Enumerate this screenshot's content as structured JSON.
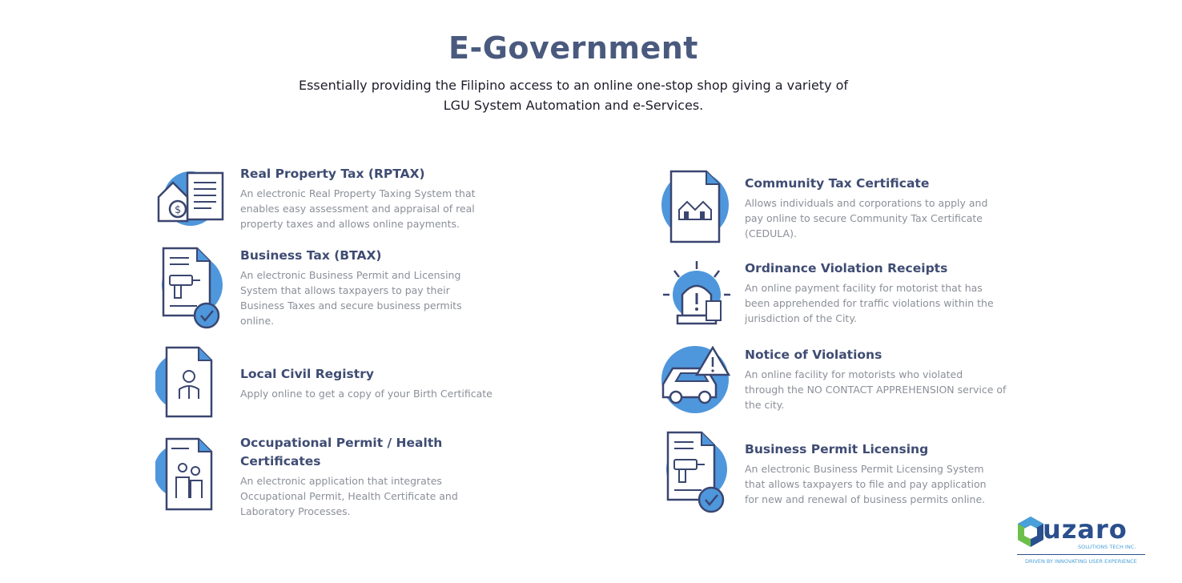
{
  "header": {
    "title": "E-Government",
    "subtitle_line1": "Essentially providing the Filipino access to an online one-stop shop giving a variety of",
    "subtitle_line2": "LGU System Automation and e-Services."
  },
  "colors": {
    "title": "#4a5a7e",
    "accent_blue": "#4f97dc",
    "outline": "#3a4670",
    "body_text": "#8b8f98"
  },
  "services_left": [
    {
      "icon": "house-money-document-icon",
      "title": "Real Property Tax (RPTAX)",
      "lines": [
        "An electronic Real Property Taxing System that",
        "enables easy assessment and appraisal of real",
        "property taxes and allows online payments."
      ]
    },
    {
      "icon": "drill-document-check-icon",
      "title": "Business Tax (BTAX)",
      "lines": [
        "An electronic Business Permit and Licensing",
        "System that allows taxpayers to pay their",
        "Business Taxes and secure business permits",
        "online."
      ]
    },
    {
      "icon": "person-document-icon",
      "title": "Local Civil Registry",
      "lines": [
        "Apply online to get a copy of your Birth Certificate"
      ]
    },
    {
      "icon": "workers-document-icon",
      "title_line1": "Occupational Permit / Health",
      "title_line2": "Certificates",
      "lines": [
        "An electronic application that integrates",
        "Occupational Permit, Health Certificate and",
        "Laboratory Processes."
      ]
    }
  ],
  "services_right": [
    {
      "icon": "houses-document-icon",
      "title": "Community Tax Certificate",
      "lines": [
        "Allows individuals and corporations to apply and",
        "pay online to secure Community Tax Certificate",
        "(CEDULA)."
      ]
    },
    {
      "icon": "siren-receipt-icon",
      "title": "Ordinance Violation Receipts",
      "lines": [
        "An online payment facility for motorist that has",
        "been apprehended for traffic violations within the",
        "jurisdiction of the City."
      ]
    },
    {
      "icon": "car-warning-icon",
      "title": "Notice of Violations",
      "lines": [
        "An online facility for motorists who violated",
        "through the NO CONTACT APPREHENSION service of",
        "the city."
      ]
    },
    {
      "icon": "drill-document-check-icon",
      "title": "Business Permit Licensing",
      "lines": [
        "An electronic Business Permit Licensing System",
        "that allows taxpayers to file and pay application",
        "for new and renewal of business permits online."
      ]
    }
  ],
  "brand": {
    "name": "uzaro",
    "sub": "SOLUTIONS TECH INC.",
    "tagline": "DRIVEN BY INNOVATING USER EXPERIENCE"
  }
}
